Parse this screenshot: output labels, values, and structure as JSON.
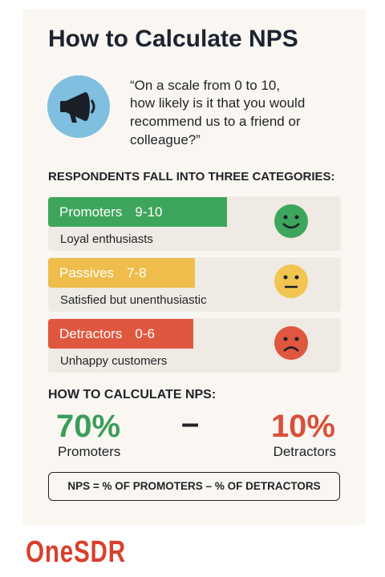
{
  "header": {
    "title": "How to Calculate NPS"
  },
  "question": {
    "lines": [
      "“On a scale from 0 to 10,",
      "how likely is it that you would",
      "recommend us to a friend or",
      "colleague?”"
    ]
  },
  "categories_heading": "RESPONDENTS FALL INTO THREE CATEGORIES:",
  "categories": [
    {
      "name": "Promoters",
      "range": "9-10",
      "description": "Loyal enthusiasts"
    },
    {
      "name": "Passives",
      "range": "7-8",
      "description": "Satisfied but unenthusiastic"
    },
    {
      "name": "Detractors",
      "range": "0-6",
      "description": "Unhappy customers"
    }
  ],
  "calculation": {
    "heading": "HOW TO CALCULATE NPS:",
    "left": {
      "value": "70%",
      "label": "Promoters"
    },
    "operator": "–",
    "right": {
      "value": "10%",
      "label": "Detractors"
    },
    "formula": "NPS = % OF PROMOTERS – % OF DETRACTORS"
  },
  "brand": "OneSDR"
}
